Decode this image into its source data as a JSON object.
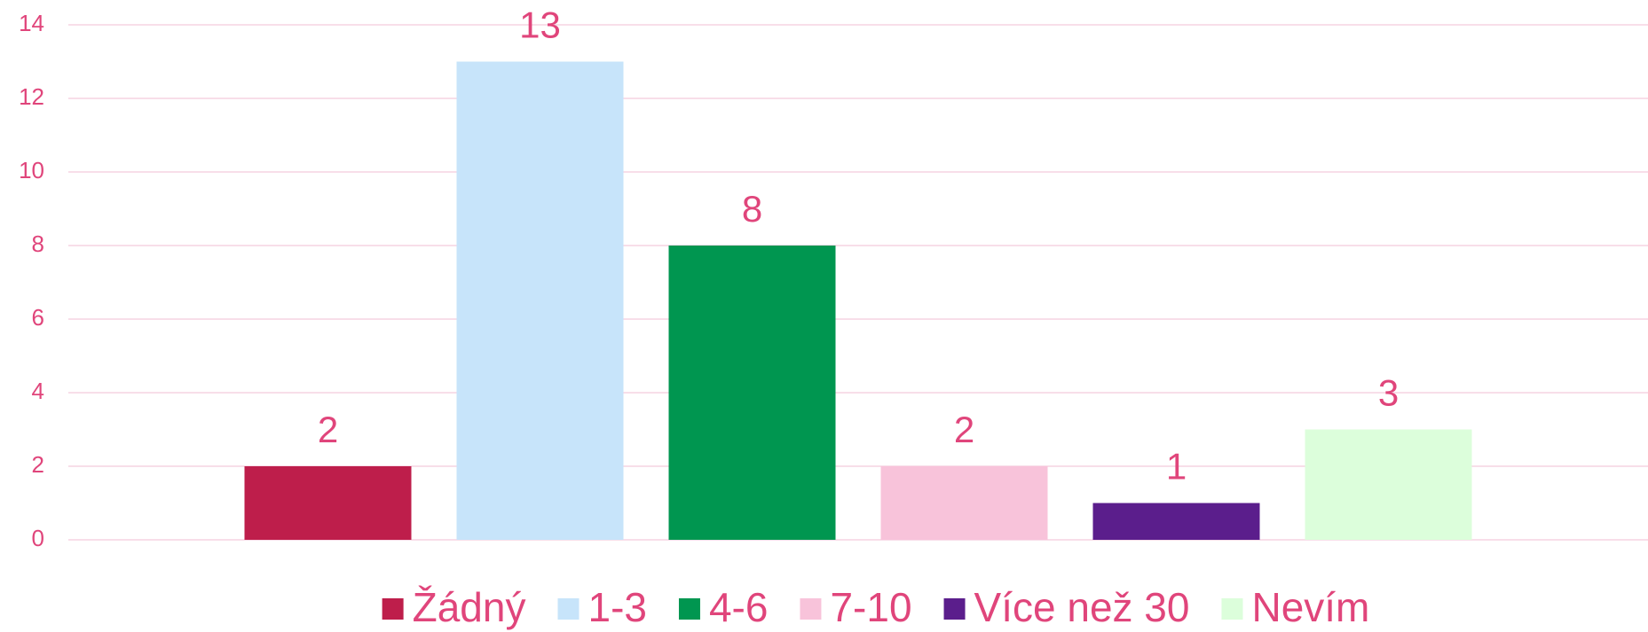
{
  "chart_data": {
    "type": "bar",
    "categories": [
      null
    ],
    "series": [
      {
        "name": "Žádný",
        "color": "#be1e4b",
        "values": [
          2
        ]
      },
      {
        "name": "1-3",
        "color": "#c7e4fa",
        "values": [
          13
        ]
      },
      {
        "name": "4-6",
        "color": "#009650",
        "values": [
          8
        ]
      },
      {
        "name": "7-10",
        "color": "#f8c3da",
        "values": [
          2
        ]
      },
      {
        "name": "Více než 30",
        "color": "#5b1e8c",
        "values": [
          1
        ]
      },
      {
        "name": "Nevím",
        "color": "#dcfedb",
        "values": [
          3
        ]
      }
    ],
    "ylim": [
      0,
      14
    ],
    "yticks": [
      0,
      2,
      4,
      6,
      8,
      10,
      12,
      14
    ],
    "grid": true,
    "legend": "bottom"
  }
}
